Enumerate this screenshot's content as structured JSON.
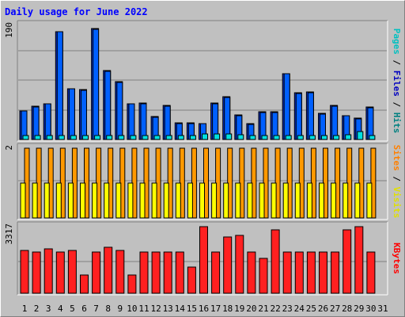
{
  "chart_data": {
    "type": "bar",
    "title": "Daily usage for June 2022",
    "categories": [
      "1",
      "2",
      "3",
      "4",
      "5",
      "6",
      "7",
      "8",
      "9",
      "10",
      "11",
      "12",
      "13",
      "14",
      "15",
      "16",
      "17",
      "18",
      "19",
      "20",
      "21",
      "22",
      "23",
      "24",
      "25",
      "26",
      "27",
      "28",
      "29",
      "30",
      "31"
    ],
    "weekend_days": [
      4,
      5,
      11,
      12,
      18,
      19,
      25,
      26
    ],
    "panels": [
      {
        "id": "hits",
        "ymax_label": "190",
        "ylim": [
          0,
          190
        ],
        "legend": [
          {
            "label": "Pages",
            "color": "#00c0c0"
          },
          {
            "label": " / ",
            "color": "#000000"
          },
          {
            "label": "Files",
            "color": "#0000c0"
          },
          {
            "label": " / ",
            "color": "#000000"
          },
          {
            "label": "Hits",
            "color": "#008080"
          }
        ],
        "series": [
          {
            "name": "Hits",
            "color": "#0030d0",
            "values": [
              48,
              55,
              60,
              180,
              85,
              83,
              185,
              115,
              96,
              60,
              61,
              38,
              57,
              28,
              28,
              27,
              61,
              71,
              41,
              26,
              46,
              46,
              110,
              78,
              79,
              43,
              57,
              40,
              35,
              54,
              0
            ]
          },
          {
            "name": "Files",
            "color": "#0060ff",
            "values": [
              47,
              54,
              59,
              179,
              84,
              82,
              184,
              114,
              95,
              59,
              60,
              37,
              56,
              27,
              27,
              26,
              60,
              70,
              40,
              25,
              45,
              45,
              109,
              77,
              78,
              42,
              56,
              39,
              34,
              53,
              0
            ]
          },
          {
            "name": "Pages",
            "color": "#00e0e0",
            "values": [
              6,
              6,
              6,
              7,
              6,
              6,
              7,
              7,
              6,
              6,
              6,
              6,
              6,
              6,
              6,
              9,
              9,
              9,
              8,
              6,
              6,
              6,
              7,
              6,
              6,
              6,
              6,
              8,
              13,
              6,
              0
            ]
          }
        ]
      },
      {
        "id": "visits",
        "ymax_label": "2",
        "ylim": [
          0,
          2
        ],
        "legend": [
          {
            "label": "Sites",
            "color": "#ff8000"
          },
          {
            "label": " / ",
            "color": "#000000"
          },
          {
            "label": "Visits",
            "color": "#e0e000"
          }
        ],
        "series": [
          {
            "name": "Visits",
            "color": "#ff9900",
            "values": [
              2,
              2,
              2,
              2,
              2,
              2,
              2,
              2,
              2,
              2,
              2,
              2,
              2,
              2,
              2,
              2,
              2,
              2,
              2,
              2,
              2,
              2,
              2,
              2,
              2,
              2,
              2,
              2,
              2,
              2,
              0
            ]
          },
          {
            "name": "Sites",
            "color": "#ffff00",
            "values": [
              1,
              1,
              1,
              1,
              1,
              1,
              1,
              1,
              1,
              1,
              1,
              1,
              1,
              1,
              1,
              1,
              1,
              1,
              1,
              1,
              1,
              1,
              1,
              1,
              1,
              1,
              1,
              1,
              1,
              1,
              0
            ]
          }
        ]
      },
      {
        "id": "kbytes",
        "ymax_label": "3317",
        "ylim": [
          0,
          3317
        ],
        "legend": [
          {
            "label": "KBytes",
            "color": "#ff0000"
          }
        ],
        "series": [
          {
            "name": "KBytes",
            "color": "#ff2020",
            "values": [
              2150,
              2050,
              2200,
              2050,
              2150,
              900,
              2050,
              2300,
              2150,
              900,
              2050,
              2050,
              2050,
              2050,
              1300,
              3300,
              2050,
              2800,
              2900,
              2050,
              1750,
              3150,
              2050,
              2050,
              2050,
              2050,
              2050,
              3150,
              3300,
              2050,
              0
            ]
          }
        ]
      }
    ]
  }
}
